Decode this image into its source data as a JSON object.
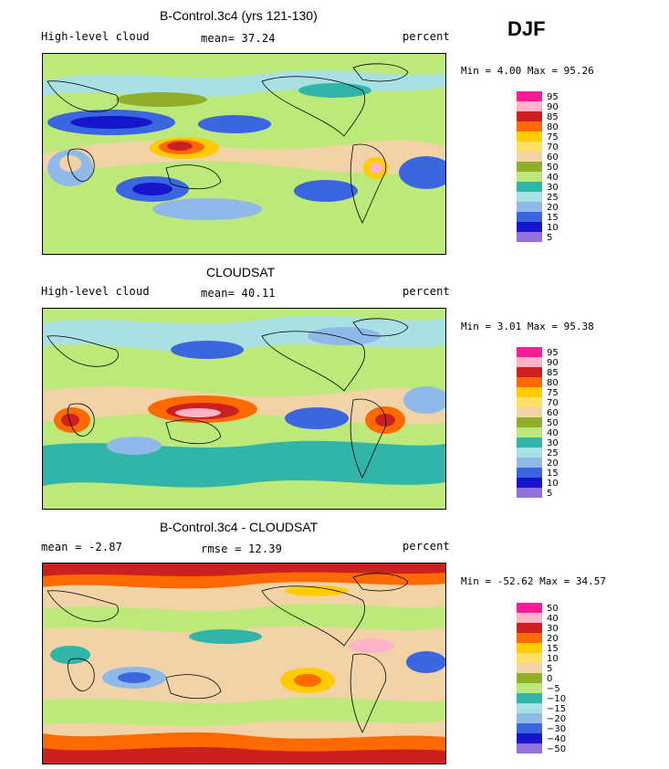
{
  "season_label": "DJF",
  "colors": {
    "c95": "#ff1a9a",
    "c90": "#ffb3c8",
    "c85": "#cc2020",
    "c80": "#ff6a00",
    "c75": "#ffcc00",
    "c70": "#ffe066",
    "c60": "#f2d3a8",
    "c50": "#8faf2a",
    "c40": "#bde87a",
    "c30": "#30b5a8",
    "c25": "#a8e0e3",
    "c20": "#8eb9e8",
    "c15": "#3a66e0",
    "c10": "#1515cc",
    "c5": "#9370db"
  },
  "panels": [
    {
      "title": "B-Control.3c4 (yrs 121-130)",
      "left_label": "High-level cloud",
      "stat_label": "mean=  37.24",
      "units": "percent",
      "minmax": "Min =   4.00 Max =  95.26",
      "legend": [
        "95",
        "90",
        "85",
        "80",
        "75",
        "70",
        "60",
        "50",
        "40",
        "30",
        "25",
        "20",
        "15",
        "10",
        "5"
      ]
    },
    {
      "title": "CLOUDSAT",
      "left_label": "High-level cloud",
      "stat_label": "mean=  40.11",
      "units": "percent",
      "minmax": "Min =   3.01 Max =  95.38",
      "legend": [
        "95",
        "90",
        "85",
        "80",
        "75",
        "70",
        "60",
        "50",
        "40",
        "30",
        "25",
        "20",
        "15",
        "10",
        "5"
      ]
    },
    {
      "title": "B-Control.3c4 - CLOUDSAT",
      "left_label": "mean =  -2.87",
      "stat_label": "rmse =  12.39",
      "units": "percent",
      "minmax": "Min = -52.62 Max =  34.57",
      "legend": [
        "50",
        "40",
        "30",
        "20",
        "15",
        "10",
        "5",
        "0",
        "−5",
        "−10",
        "−15",
        "−20",
        "−30",
        "−40",
        "−50"
      ]
    }
  ]
}
